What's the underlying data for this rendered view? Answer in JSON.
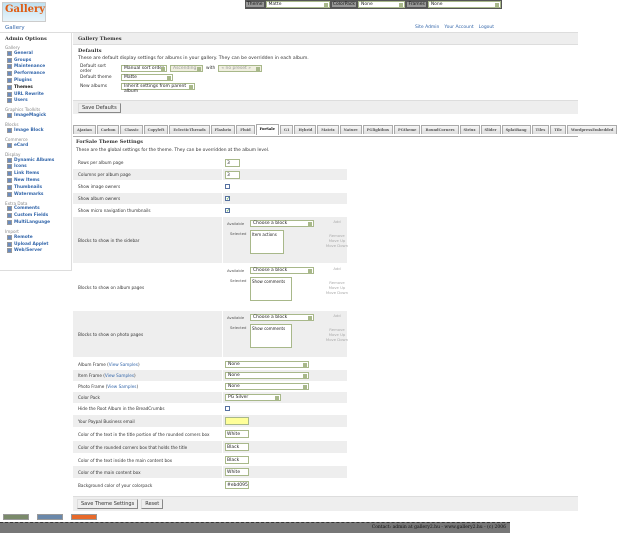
{
  "logo": {
    "text": "Gallery"
  },
  "topbar": {
    "theme_label": "Theme",
    "theme_value": "Matte",
    "colorpack_label": "ColorPack",
    "colorpack_value": "None",
    "frames_label": "Frames",
    "frames_value": "None"
  },
  "breadcrumb": "Gallery",
  "toplinks": [
    "Site Admin",
    "Your Account",
    "Logout"
  ],
  "sidebar": {
    "title": "Admin Options",
    "groups": [
      {
        "label": "Gallery",
        "items": [
          "General",
          "Groups",
          "Maintenance",
          "Performance",
          "Plugins",
          "Themes",
          "URL Rewrite",
          "Users"
        ]
      },
      {
        "label": "Graphics Toolkits",
        "items": [
          "ImageMagick"
        ]
      },
      {
        "label": "Blocks",
        "items": [
          "Image Block"
        ]
      },
      {
        "label": "Commerce",
        "items": [
          "eCard"
        ]
      },
      {
        "label": "Display",
        "items": [
          "Dynamic Albums",
          "Icons",
          "Link Items",
          "New Items",
          "Thumbnails",
          "Watermarks"
        ]
      },
      {
        "label": "Extra Data",
        "items": [
          "Comments",
          "Custom Fields",
          "MultiLanguage"
        ]
      },
      {
        "label": "Import",
        "items": [
          "Remote",
          "Upload Applet",
          "Web/Server"
        ]
      }
    ],
    "current": "Themes"
  },
  "main": {
    "title": "Gallery Themes",
    "defaults_title": "Defaults",
    "defaults_desc": "These are default display settings for albums in your gallery. They can be overridden in each album.",
    "sort_label": "Default sort order",
    "sort_value": "Manual sort order",
    "sort_dir": "Ascending",
    "with_label": "with",
    "with_value": "« no preset »",
    "theme_label": "Default theme",
    "theme_value": "Matte",
    "new_albums_label": "New albums",
    "new_albums_value": "Inherit settings from parent album",
    "save_defaults": "Save Defaults"
  },
  "tabs": [
    "Ajaxian",
    "Carbon",
    "Classic",
    "Copyleft",
    "EclecticThreads",
    "Flashrio",
    "Fluid",
    "ForSale",
    "G1",
    "Hybrid",
    "Matrix",
    "Nature",
    "PGlightbox",
    "PGtheme",
    "RoundCorners",
    "Siriux",
    "Slider",
    "SplatBang",
    "Tiles",
    "Tile",
    "WordpressEmbedded"
  ],
  "active_tab": "ForSale",
  "theme": {
    "title": "ForSale Theme Settings",
    "desc": "These are the global settings for the theme. They can be overridden at the album level.",
    "rows_label": "Rows per album page",
    "rows_value": "3",
    "cols_label": "Columns per album page",
    "cols_value": "3",
    "image_owners_label": "Show image owners",
    "image_owners": false,
    "album_owners_label": "Show album owners",
    "album_owners": true,
    "micro_nav_label": "Show micro navigation thumbnails",
    "micro_nav": true,
    "blocks": [
      {
        "label": "Blocks to show in the sidebar",
        "selected": "Item actions"
      },
      {
        "label": "Blocks to show on album pages",
        "selected": "Show comments"
      },
      {
        "label": "Blocks to show on photo pages",
        "selected": "Show comments"
      }
    ],
    "available_label": "Available",
    "selected_label": "Selected",
    "choose": "Choose a block",
    "add": "Add",
    "remove": "Remove",
    "move_up": "Move Up",
    "move_down": "Move Down",
    "album_frame_label": "Album Frame",
    "item_frame_label": "Item Frame",
    "photo_frame_label": "Photo Frame",
    "view_samples": "View Samples",
    "album_frame": "None",
    "item_frame": "None",
    "photo_frame": "None",
    "color_pack_label": "Color Pack",
    "color_pack": "PG Silver",
    "hide_root_label": "Hide the Root Album in the BreadCrumbs",
    "hide_root": false,
    "paypal_label": "Your Paypal Business email",
    "paypal": "",
    "c1_label": "Color of the text in the title portion of the rounded corners box",
    "c1": "White",
    "c2_label": "Color of the rounded corners box that holds the title",
    "c2": "Black",
    "c3_label": "Color of the text inside the main content box",
    "c3": "Black",
    "c4_label": "Color of the main content box",
    "c4": "White",
    "c5_label": "Background color of your colorpack",
    "c5": "#ebd095",
    "save": "Save Theme Settings",
    "reset": "Reset"
  },
  "footer": "Contact: admin at gallery2.hu - www.gallery2.hu - (c) 2006",
  "colors": {
    "link": "#3366aa",
    "header_bg": "#eeeeee",
    "footer_bg": "#777777",
    "input_border": "#a8b88a",
    "paypal_bg": "#ffff99"
  }
}
